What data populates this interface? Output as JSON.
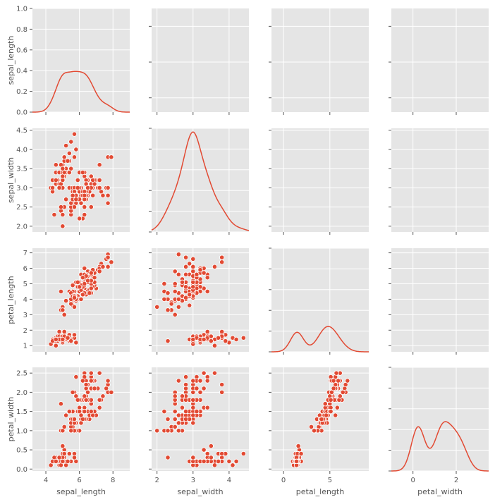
{
  "chart_data": {
    "type": "scatter",
    "variables": [
      "sepal_length",
      "sepal_width",
      "petal_length",
      "petal_width"
    ],
    "grid": true,
    "diag_ylim": [
      0,
      1
    ],
    "diag_yticks": [
      "0.0",
      "0.2",
      "0.4",
      "0.6",
      "0.8",
      "1.0"
    ],
    "axes": [
      {
        "lim": [
          3.2,
          9.0
        ],
        "ticks": [
          4,
          6,
          8
        ],
        "tick_labels": [
          "4",
          "6",
          "8"
        ]
      },
      {
        "lim": [
          1.85,
          4.55
        ],
        "ticks": [
          2.0,
          2.5,
          3.0,
          3.5,
          4.0,
          4.5
        ],
        "tick_labels": [
          "2.0",
          "2.5",
          "3.0",
          "3.5",
          "4.0",
          "4.5"
        ],
        "xticks": [
          2,
          3,
          4
        ],
        "xtick_labels": [
          "2",
          "3",
          "4"
        ]
      },
      {
        "lim": [
          0.6,
          7.3
        ],
        "ticks": [
          1,
          2,
          3,
          4,
          5,
          6,
          7
        ],
        "tick_labels": [
          "1",
          "2",
          "3",
          "4",
          "5",
          "6",
          "7"
        ],
        "xlim": [
          -1.3,
          9.2
        ],
        "xticks": [
          0,
          5
        ],
        "xtick_labels": [
          "0",
          "5"
        ]
      },
      {
        "lim": [
          -0.05,
          2.65
        ],
        "ticks": [
          0.0,
          0.5,
          1.0,
          1.5,
          2.0,
          2.5
        ],
        "tick_labels": [
          "0.0",
          "0.5",
          "1.0",
          "1.5",
          "2.0",
          "2.5"
        ],
        "xlim": [
          -1.0,
          3.5
        ],
        "xticks": [
          0,
          2
        ],
        "xtick_labels": [
          "0",
          "2"
        ]
      }
    ],
    "points": [
      [
        5.1,
        3.5,
        1.4,
        0.2
      ],
      [
        4.9,
        3.0,
        1.4,
        0.2
      ],
      [
        4.7,
        3.2,
        1.3,
        0.2
      ],
      [
        4.6,
        3.1,
        1.5,
        0.2
      ],
      [
        5.0,
        3.6,
        1.4,
        0.2
      ],
      [
        5.4,
        3.9,
        1.7,
        0.4
      ],
      [
        4.6,
        3.4,
        1.4,
        0.3
      ],
      [
        5.0,
        3.4,
        1.5,
        0.2
      ],
      [
        4.4,
        2.9,
        1.4,
        0.2
      ],
      [
        4.9,
        3.1,
        1.5,
        0.1
      ],
      [
        5.4,
        3.7,
        1.5,
        0.2
      ],
      [
        4.8,
        3.4,
        1.6,
        0.2
      ],
      [
        4.8,
        3.0,
        1.4,
        0.1
      ],
      [
        4.3,
        3.0,
        1.1,
        0.1
      ],
      [
        5.8,
        4.0,
        1.2,
        0.2
      ],
      [
        5.7,
        4.4,
        1.5,
        0.4
      ],
      [
        5.4,
        3.9,
        1.3,
        0.4
      ],
      [
        5.1,
        3.5,
        1.4,
        0.3
      ],
      [
        5.7,
        3.8,
        1.7,
        0.3
      ],
      [
        5.1,
        3.8,
        1.5,
        0.3
      ],
      [
        5.4,
        3.4,
        1.7,
        0.2
      ],
      [
        5.1,
        3.7,
        1.5,
        0.4
      ],
      [
        4.6,
        3.6,
        1.0,
        0.2
      ],
      [
        5.1,
        3.3,
        1.7,
        0.5
      ],
      [
        4.8,
        3.4,
        1.9,
        0.2
      ],
      [
        5.0,
        3.0,
        1.6,
        0.2
      ],
      [
        5.0,
        3.4,
        1.6,
        0.4
      ],
      [
        5.2,
        3.5,
        1.5,
        0.2
      ],
      [
        5.2,
        3.4,
        1.4,
        0.2
      ],
      [
        4.7,
        3.2,
        1.6,
        0.2
      ],
      [
        4.8,
        3.1,
        1.6,
        0.2
      ],
      [
        5.4,
        3.4,
        1.5,
        0.4
      ],
      [
        5.2,
        4.1,
        1.5,
        0.1
      ],
      [
        5.5,
        4.2,
        1.4,
        0.2
      ],
      [
        4.9,
        3.1,
        1.5,
        0.2
      ],
      [
        5.0,
        3.2,
        1.2,
        0.2
      ],
      [
        5.5,
        3.5,
        1.3,
        0.2
      ],
      [
        4.9,
        3.6,
        1.4,
        0.1
      ],
      [
        4.4,
        3.0,
        1.3,
        0.2
      ],
      [
        5.1,
        3.4,
        1.5,
        0.2
      ],
      [
        5.0,
        3.5,
        1.3,
        0.3
      ],
      [
        4.5,
        2.3,
        1.3,
        0.3
      ],
      [
        4.4,
        3.2,
        1.3,
        0.2
      ],
      [
        5.0,
        3.5,
        1.6,
        0.6
      ],
      [
        5.1,
        3.8,
        1.9,
        0.4
      ],
      [
        4.8,
        3.0,
        1.4,
        0.3
      ],
      [
        5.1,
        3.8,
        1.6,
        0.2
      ],
      [
        4.6,
        3.2,
        1.4,
        0.2
      ],
      [
        5.3,
        3.7,
        1.5,
        0.2
      ],
      [
        5.0,
        3.3,
        1.4,
        0.2
      ],
      [
        7.0,
        3.2,
        4.7,
        1.4
      ],
      [
        6.4,
        3.2,
        4.5,
        1.5
      ],
      [
        6.9,
        3.1,
        4.9,
        1.5
      ],
      [
        5.5,
        2.3,
        4.0,
        1.3
      ],
      [
        6.5,
        2.8,
        4.6,
        1.5
      ],
      [
        5.7,
        2.8,
        4.5,
        1.3
      ],
      [
        6.3,
        3.3,
        4.7,
        1.6
      ],
      [
        4.9,
        2.4,
        3.3,
        1.0
      ],
      [
        6.6,
        2.9,
        4.6,
        1.3
      ],
      [
        5.2,
        2.7,
        3.9,
        1.4
      ],
      [
        5.0,
        2.0,
        3.5,
        1.0
      ],
      [
        5.9,
        3.0,
        4.2,
        1.5
      ],
      [
        6.0,
        2.2,
        4.0,
        1.0
      ],
      [
        6.1,
        2.9,
        4.7,
        1.4
      ],
      [
        5.6,
        2.9,
        3.6,
        1.3
      ],
      [
        6.7,
        3.1,
        4.4,
        1.4
      ],
      [
        5.6,
        3.0,
        4.5,
        1.5
      ],
      [
        5.8,
        2.7,
        4.1,
        1.0
      ],
      [
        6.2,
        2.2,
        4.5,
        1.5
      ],
      [
        5.6,
        2.5,
        3.9,
        1.1
      ],
      [
        5.9,
        3.2,
        4.8,
        1.8
      ],
      [
        6.1,
        2.8,
        4.0,
        1.3
      ],
      [
        6.3,
        2.5,
        4.9,
        1.5
      ],
      [
        6.1,
        2.8,
        4.7,
        1.2
      ],
      [
        6.4,
        2.9,
        4.3,
        1.3
      ],
      [
        6.6,
        3.0,
        4.4,
        1.4
      ],
      [
        6.8,
        2.8,
        4.8,
        1.4
      ],
      [
        6.7,
        3.0,
        5.0,
        1.7
      ],
      [
        6.0,
        2.9,
        4.5,
        1.5
      ],
      [
        5.7,
        2.6,
        3.5,
        1.0
      ],
      [
        5.5,
        2.4,
        3.8,
        1.1
      ],
      [
        5.5,
        2.4,
        3.7,
        1.0
      ],
      [
        5.8,
        2.7,
        3.9,
        1.2
      ],
      [
        6.0,
        2.7,
        5.1,
        1.6
      ],
      [
        5.4,
        3.0,
        4.5,
        1.5
      ],
      [
        6.0,
        3.4,
        4.5,
        1.6
      ],
      [
        6.7,
        3.1,
        4.7,
        1.5
      ],
      [
        6.3,
        2.3,
        4.4,
        1.3
      ],
      [
        5.6,
        3.0,
        4.1,
        1.3
      ],
      [
        5.5,
        2.5,
        4.0,
        1.3
      ],
      [
        5.5,
        2.6,
        4.4,
        1.2
      ],
      [
        6.1,
        3.0,
        4.6,
        1.4
      ],
      [
        5.8,
        2.6,
        4.0,
        1.2
      ],
      [
        5.0,
        2.3,
        3.3,
        1.0
      ],
      [
        5.6,
        2.7,
        4.2,
        1.3
      ],
      [
        5.7,
        3.0,
        4.2,
        1.2
      ],
      [
        5.7,
        2.9,
        4.2,
        1.3
      ],
      [
        6.2,
        2.9,
        4.3,
        1.3
      ],
      [
        5.1,
        2.5,
        3.0,
        1.1
      ],
      [
        5.7,
        2.8,
        4.1,
        1.3
      ],
      [
        6.3,
        3.3,
        6.0,
        2.5
      ],
      [
        5.8,
        2.7,
        5.1,
        1.9
      ],
      [
        7.1,
        3.0,
        5.9,
        2.1
      ],
      [
        6.3,
        2.9,
        5.6,
        1.8
      ],
      [
        6.5,
        3.0,
        5.8,
        2.2
      ],
      [
        7.6,
        3.0,
        6.6,
        2.1
      ],
      [
        4.9,
        2.5,
        4.5,
        1.7
      ],
      [
        7.3,
        2.9,
        6.3,
        1.8
      ],
      [
        6.7,
        2.5,
        5.8,
        1.8
      ],
      [
        7.2,
        3.6,
        6.1,
        2.5
      ],
      [
        6.5,
        3.2,
        5.1,
        2.0
      ],
      [
        6.4,
        2.7,
        5.3,
        1.9
      ],
      [
        6.8,
        3.0,
        5.5,
        2.1
      ],
      [
        5.7,
        2.5,
        5.0,
        2.0
      ],
      [
        5.8,
        2.8,
        5.1,
        2.4
      ],
      [
        6.4,
        3.2,
        5.3,
        2.3
      ],
      [
        6.5,
        3.0,
        5.5,
        1.8
      ],
      [
        7.7,
        3.8,
        6.7,
        2.2
      ],
      [
        7.7,
        2.6,
        6.9,
        2.3
      ],
      [
        6.0,
        2.2,
        5.0,
        1.5
      ],
      [
        6.9,
        3.2,
        5.7,
        2.3
      ],
      [
        5.6,
        2.8,
        4.9,
        2.0
      ],
      [
        7.7,
        2.8,
        6.7,
        2.0
      ],
      [
        6.3,
        2.7,
        4.9,
        1.8
      ],
      [
        6.7,
        3.3,
        5.7,
        2.1
      ],
      [
        7.2,
        3.2,
        6.0,
        1.8
      ],
      [
        6.2,
        2.8,
        4.8,
        1.8
      ],
      [
        6.1,
        3.0,
        4.9,
        1.8
      ],
      [
        6.4,
        2.8,
        5.6,
        2.1
      ],
      [
        7.2,
        3.0,
        5.8,
        1.6
      ],
      [
        7.4,
        2.8,
        6.1,
        1.9
      ],
      [
        7.9,
        3.8,
        6.4,
        2.0
      ],
      [
        6.4,
        2.8,
        5.6,
        2.2
      ],
      [
        6.3,
        2.8,
        5.1,
        1.5
      ],
      [
        6.1,
        2.6,
        5.6,
        1.4
      ],
      [
        7.7,
        3.0,
        6.1,
        2.3
      ],
      [
        6.3,
        3.4,
        5.6,
        2.4
      ],
      [
        6.4,
        3.1,
        5.5,
        1.8
      ],
      [
        6.0,
        3.0,
        4.8,
        1.8
      ],
      [
        6.9,
        3.1,
        5.4,
        2.1
      ],
      [
        6.7,
        3.1,
        5.6,
        2.4
      ],
      [
        6.9,
        3.1,
        5.1,
        2.3
      ],
      [
        5.8,
        2.7,
        5.1,
        1.9
      ],
      [
        6.8,
        3.2,
        5.9,
        2.3
      ],
      [
        6.7,
        3.3,
        5.7,
        2.5
      ],
      [
        6.7,
        3.0,
        5.2,
        2.3
      ],
      [
        6.3,
        2.5,
        5.0,
        1.9
      ],
      [
        6.5,
        3.0,
        5.2,
        2.0
      ],
      [
        6.2,
        3.4,
        5.4,
        2.3
      ],
      [
        5.9,
        3.0,
        5.1,
        1.8
      ]
    ]
  }
}
